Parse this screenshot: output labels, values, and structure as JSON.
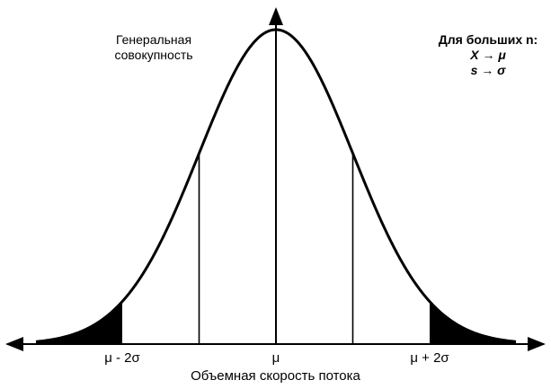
{
  "diagram": {
    "population_label": [
      "Генеральная",
      "совокупность"
    ],
    "note": {
      "title": "Для больших n:",
      "line1": "X → μ",
      "line2": "s → σ"
    },
    "ticks": {
      "left": "μ - 2σ",
      "center": "μ",
      "right": "μ + 2σ"
    },
    "x_axis_label": "Объемная скорость потока",
    "colors": {
      "line": "#000000",
      "tail_fill": "#000000",
      "background": "#ffffff"
    }
  }
}
